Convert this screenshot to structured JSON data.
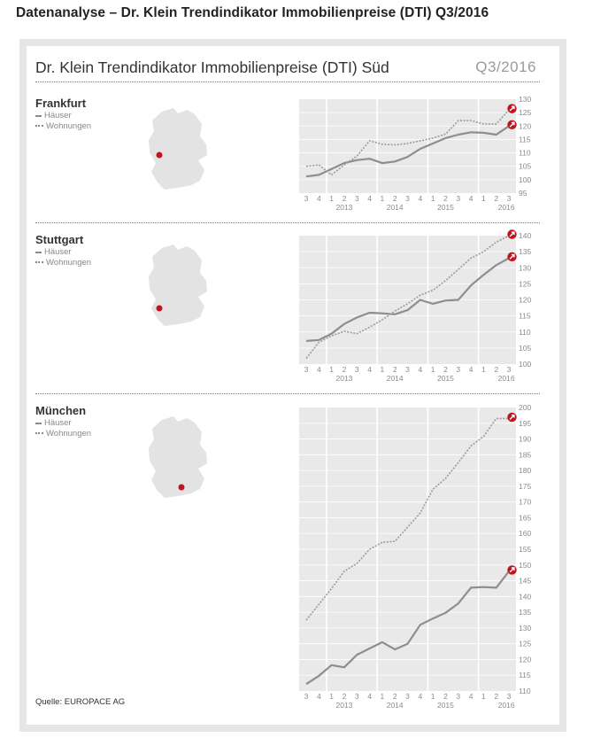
{
  "page_title": "Datenanalyse – Dr. Klein Trendindikator Immobilienpreise (DTI) Q3/2016",
  "card": {
    "title": "Dr. Klein Trendindikator Immobilienpreise (DTI) Süd",
    "period": "Q3/2016",
    "source": "Quelle: EUROPACE AG"
  },
  "legend": {
    "houses": "Häuser",
    "apartments": "Wohnungen"
  },
  "colors": {
    "houses": "#8d8d92",
    "apartments": "#9a9aa0",
    "marker": "#c0121f",
    "plot_bg": "#e9e9e9"
  },
  "sections": [
    {
      "city": "Frankfurt",
      "map_icon": "germany-map-icon"
    },
    {
      "city": "Stuttgart",
      "map_icon": "germany-map-icon"
    },
    {
      "city": "München",
      "map_icon": "germany-map-icon"
    }
  ],
  "chart_data": [
    {
      "type": "line",
      "title": "Frankfurt",
      "quarters": [
        "3",
        "4",
        "1",
        "2",
        "3",
        "4",
        "1",
        "2",
        "3",
        "4",
        "1",
        "2",
        "3",
        "4",
        "1",
        "2",
        "3"
      ],
      "years": [
        {
          "label": "2013",
          "at": 3
        },
        {
          "label": "2014",
          "at": 7
        },
        {
          "label": "2015",
          "at": 11
        },
        {
          "label": "2016",
          "at": 15.8
        }
      ],
      "ylim": [
        95,
        130
      ],
      "yticks": [
        95,
        100,
        105,
        110,
        115,
        120,
        125,
        130
      ],
      "ytick_positions_shown": [
        100,
        105,
        110,
        115,
        120,
        125,
        130
      ],
      "ytick_below_axis": 95,
      "grid": true,
      "series": [
        {
          "name": "Häuser",
          "style": "solid",
          "values": [
            101.2,
            101.8,
            104.0,
            106.2,
            107.3,
            107.8,
            106.2,
            106.8,
            108.5,
            111.5,
            113.5,
            115.5,
            116.8,
            117.7,
            117.5,
            116.8,
            120.0
          ]
        },
        {
          "name": "Wohnungen",
          "style": "dotted",
          "values": [
            105.0,
            105.5,
            101.8,
            105.5,
            108.8,
            114.5,
            113.2,
            113.0,
            113.5,
            114.5,
            115.5,
            117.0,
            122.0,
            122.0,
            120.8,
            120.8,
            126.0
          ]
        }
      ]
    },
    {
      "type": "line",
      "title": "Stuttgart",
      "quarters": [
        "3",
        "4",
        "1",
        "2",
        "3",
        "4",
        "1",
        "2",
        "3",
        "4",
        "1",
        "2",
        "3",
        "4",
        "1",
        "2",
        "3"
      ],
      "years": [
        {
          "label": "2013",
          "at": 3
        },
        {
          "label": "2014",
          "at": 7
        },
        {
          "label": "2015",
          "at": 11
        },
        {
          "label": "2016",
          "at": 15.8
        }
      ],
      "ylim": [
        100,
        140
      ],
      "yticks": [
        100,
        105,
        110,
        115,
        120,
        125,
        130,
        135,
        140
      ],
      "grid": true,
      "series": [
        {
          "name": "Häuser",
          "style": "solid",
          "values": [
            107.2,
            107.5,
            109.5,
            112.5,
            114.5,
            116.0,
            115.8,
            115.5,
            116.8,
            120.0,
            118.8,
            119.8,
            120.0,
            124.5,
            127.8,
            130.8,
            133.0
          ]
        },
        {
          "name": "Wohnungen",
          "style": "dotted",
          "values": [
            101.8,
            106.8,
            108.8,
            110.2,
            109.5,
            111.5,
            113.8,
            116.5,
            118.8,
            121.5,
            123.0,
            126.0,
            129.5,
            133.0,
            135.0,
            138.0,
            140.0
          ]
        }
      ]
    },
    {
      "type": "line",
      "title": "München",
      "quarters": [
        "3",
        "4",
        "1",
        "2",
        "3",
        "4",
        "1",
        "2",
        "3",
        "4",
        "1",
        "2",
        "3",
        "4",
        "1",
        "2",
        "3"
      ],
      "years": [
        {
          "label": "2013",
          "at": 3
        },
        {
          "label": "2014",
          "at": 7
        },
        {
          "label": "2015",
          "at": 11
        },
        {
          "label": "2016",
          "at": 15.8
        }
      ],
      "ylim": [
        110,
        200
      ],
      "yticks": [
        110,
        115,
        120,
        125,
        130,
        135,
        140,
        145,
        150,
        155,
        160,
        165,
        170,
        175,
        180,
        185,
        190,
        195,
        200
      ],
      "grid": true,
      "series": [
        {
          "name": "Häuser",
          "style": "solid",
          "values": [
            112.2,
            114.8,
            118.2,
            117.5,
            121.5,
            123.5,
            125.5,
            123.2,
            125.0,
            131.0,
            133.0,
            134.8,
            137.8,
            142.8,
            143.0,
            142.8,
            148.0
          ]
        },
        {
          "name": "Wohnungen",
          "style": "dotted",
          "values": [
            132.5,
            137.5,
            142.5,
            148.0,
            150.5,
            155.0,
            157.2,
            157.5,
            162.0,
            166.5,
            174.0,
            177.5,
            182.5,
            187.8,
            190.8,
            196.5,
            196.5
          ]
        }
      ]
    }
  ]
}
